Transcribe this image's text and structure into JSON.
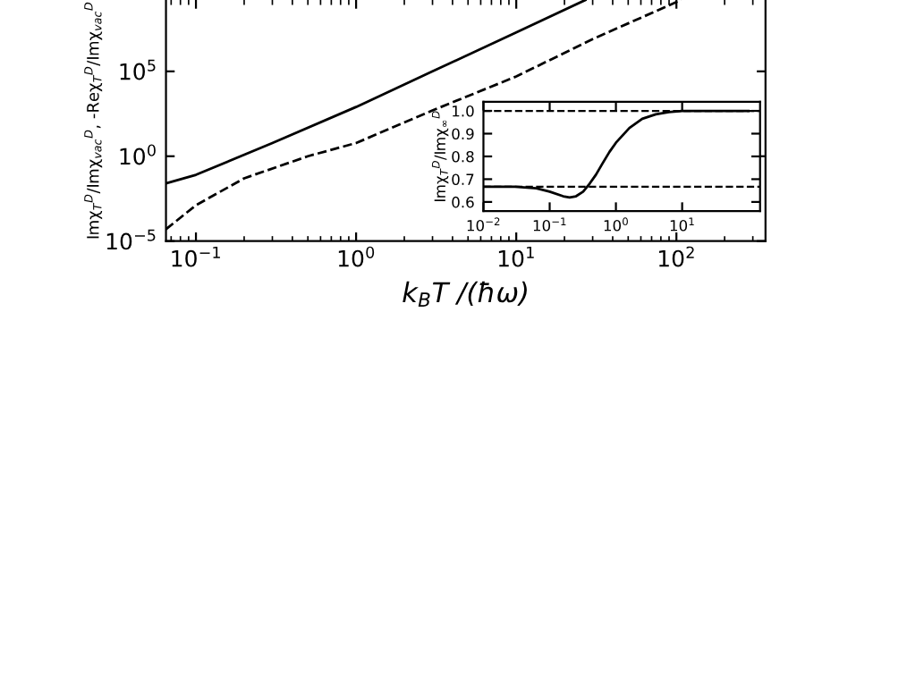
{
  "chart_data": [
    {
      "type": "line",
      "xlabel": "k$_{B}$T /(ħω)",
      "ylabel": "Imχ$_{T}$$^{D}$/Imχ$_{vac}$$^{D}$, -Reχ$_{T}$$^{D}$/Imχ$_{vac}$$^{D}$",
      "log": "xy",
      "xlim": [
        0.065,
        360
      ],
      "ylim": [
        1e-05,
        1600000000.0
      ],
      "xticks": [
        {
          "value": 0.1,
          "label": "10$^{−1}$"
        },
        {
          "value": 1,
          "label": "10$^{0}$"
        },
        {
          "value": 10,
          "label": "10$^{1}$"
        },
        {
          "value": 100,
          "label": "10$^{2}$"
        }
      ],
      "yticks": [
        {
          "value": 1e-05,
          "label": "10$^{−5}$"
        },
        {
          "value": 1,
          "label": "10$^{0}$"
        },
        {
          "value": 100000.0,
          "label": "10$^{5}$"
        }
      ],
      "grid": false,
      "legend": false,
      "series": [
        {
          "color": "#000000",
          "line_style": "solid",
          "x": [
            0.065,
            0.1,
            0.3,
            1,
            3,
            10,
            27
          ],
          "values": [
            0.025,
            0.08,
            6,
            800,
            100000,
            20000000,
            1600000000
          ]
        },
        {
          "color": "#000000",
          "line_style": "dashed",
          "x": [
            0.065,
            0.1,
            0.2,
            0.5,
            1,
            3,
            10,
            30,
            107
          ],
          "values": [
            5e-05,
            0.0013,
            0.05,
            1,
            6,
            500,
            50000,
            8000000,
            1600000000
          ]
        }
      ]
    },
    {
      "type": "line",
      "ylabel": "Imχ$_{T}$$^{D}$/Imχ$_{∞}$$^{D}$",
      "log": "x",
      "xlim": [
        0.01,
        150
      ],
      "ylim": [
        0.56,
        1.04
      ],
      "xticks": [
        {
          "value": 0.01,
          "label": "10$^{−2}$"
        },
        {
          "value": 0.1,
          "label": "10$^{−1}$"
        },
        {
          "value": 1,
          "label": "10$^{0}$"
        },
        {
          "value": 10,
          "label": "10$^{1}$"
        }
      ],
      "yticks": [
        0.6,
        0.7,
        0.8,
        0.9,
        {
          "value": 1.0,
          "label": "1.0"
        }
      ],
      "grid": false,
      "legend": false,
      "ref_lines": [
        {
          "axis": "y",
          "value": 1.0,
          "line_style": "dashed",
          "color": "#000000"
        },
        {
          "axis": "y",
          "value": 0.667,
          "line_style": "dashed",
          "color": "#000000"
        }
      ],
      "series": [
        {
          "color": "#000000",
          "line_style": "solid",
          "x": [
            0.01,
            0.03,
            0.063,
            0.1,
            0.16,
            0.2,
            0.25,
            0.32,
            0.4,
            0.5,
            0.63,
            0.8,
            1,
            1.6,
            2.5,
            4,
            6.3,
            10,
            30,
            100
          ],
          "values": [
            0.667,
            0.667,
            0.66,
            0.645,
            0.625,
            0.62,
            0.625,
            0.645,
            0.68,
            0.72,
            0.77,
            0.82,
            0.86,
            0.925,
            0.965,
            0.985,
            0.995,
            1.0,
            1.0,
            1.0
          ]
        }
      ]
    }
  ]
}
